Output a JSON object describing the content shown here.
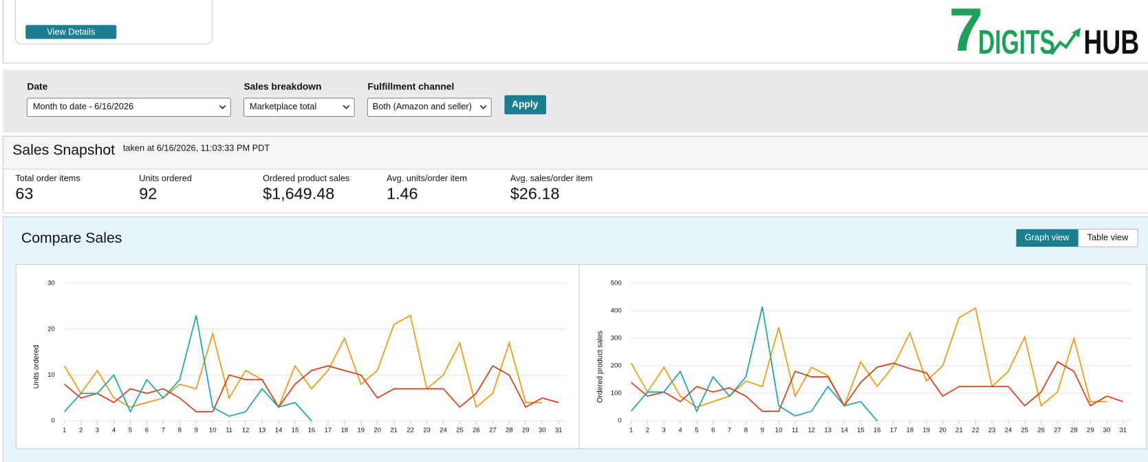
{
  "header": {
    "button": "View Details",
    "logo": {
      "number": "7",
      "word1": "DIGITS",
      "word2": "HUB"
    }
  },
  "filters": {
    "date": {
      "label": "Date",
      "value": "Month to date - 6/16/2026"
    },
    "breakdown": {
      "label": "Sales breakdown",
      "value": "Marketplace total"
    },
    "channel": {
      "label": "Fulfillment channel",
      "value": "Both (Amazon and seller)"
    },
    "apply": "Apply"
  },
  "snapshot": {
    "title": "Sales Snapshot",
    "timestamp": "taken at 6/16/2026, 11:03:33 PM PDT",
    "metrics": [
      {
        "label": "Total order items",
        "value": "63"
      },
      {
        "label": "Units ordered",
        "value": "92"
      },
      {
        "label": "Ordered product sales",
        "value": "$1,649.48"
      },
      {
        "label": "Avg. units/order item",
        "value": "1.46"
      },
      {
        "label": "Avg. sales/order item",
        "value": "$26.18"
      }
    ]
  },
  "compare": {
    "title": "Compare Sales",
    "views": [
      "Graph view",
      "Table view"
    ]
  },
  "chart_data": [
    {
      "type": "line",
      "ylabel": "Units ordered",
      "x": [
        1,
        2,
        3,
        4,
        5,
        6,
        7,
        8,
        9,
        10,
        11,
        12,
        13,
        14,
        15,
        16,
        17,
        18,
        19,
        20,
        21,
        22,
        23,
        24,
        25,
        26,
        27,
        28,
        29,
        30,
        31
      ],
      "xlim": [
        1,
        31
      ],
      "xticks": [
        1,
        2,
        3,
        4,
        5,
        6,
        7,
        8,
        9,
        10,
        11,
        12,
        13,
        14,
        15,
        16,
        17,
        18,
        19,
        20,
        21,
        22,
        23,
        24,
        25,
        26,
        27,
        28,
        29,
        30,
        31
      ],
      "ylim": [
        0,
        30
      ],
      "yticks": [
        0,
        10,
        20,
        30
      ],
      "grid": true,
      "series": [
        {
          "color": "#f0960e",
          "values": [
            12,
            6,
            11,
            5,
            3,
            4,
            5,
            8,
            7,
            19,
            5,
            11,
            9,
            3,
            12,
            7,
            11,
            18,
            8,
            11,
            21,
            23,
            7,
            10,
            17,
            3,
            6,
            17,
            4,
            4,
            null
          ]
        },
        {
          "color": "#d93b10",
          "values": [
            8,
            5,
            6,
            4,
            7,
            6,
            7,
            5,
            2,
            2,
            10,
            9,
            9,
            3,
            8,
            11,
            12,
            11,
            10,
            5,
            7,
            7,
            7,
            7,
            3,
            6,
            12,
            10,
            3,
            5,
            4
          ]
        },
        {
          "color": "#17a2ad",
          "values": [
            2,
            6,
            6,
            10,
            2,
            9,
            5,
            9,
            23,
            3,
            1,
            2,
            7,
            3,
            4,
            0,
            null,
            null,
            null,
            null,
            null,
            null,
            null,
            null,
            null,
            null,
            null,
            null,
            null,
            null,
            null
          ]
        }
      ]
    },
    {
      "type": "line",
      "ylabel": "Ordered product sales",
      "x": [
        1,
        2,
        3,
        4,
        5,
        6,
        7,
        8,
        9,
        10,
        11,
        12,
        13,
        14,
        15,
        16,
        17,
        18,
        19,
        20,
        21,
        22,
        23,
        24,
        25,
        26,
        27,
        28,
        29,
        30,
        31
      ],
      "xlim": [
        1,
        31
      ],
      "xticks": [
        1,
        2,
        3,
        4,
        5,
        6,
        7,
        8,
        9,
        10,
        11,
        12,
        13,
        14,
        15,
        16,
        17,
        18,
        19,
        20,
        21,
        22,
        23,
        24,
        25,
        26,
        27,
        28,
        29,
        30,
        31
      ],
      "ylim": [
        0,
        500
      ],
      "yticks": [
        0,
        100,
        200,
        300,
        400,
        500
      ],
      "grid": true,
      "series": [
        {
          "color": "#f0960e",
          "values": [
            210,
            105,
            195,
            90,
            50,
            70,
            90,
            145,
            125,
            340,
            90,
            195,
            165,
            55,
            215,
            125,
            200,
            320,
            145,
            200,
            375,
            410,
            125,
            180,
            305,
            55,
            105,
            300,
            70,
            70,
            null
          ]
        },
        {
          "color": "#d93b10",
          "values": [
            140,
            90,
            105,
            70,
            125,
            105,
            120,
            90,
            35,
            35,
            180,
            160,
            160,
            55,
            140,
            195,
            210,
            190,
            175,
            90,
            125,
            125,
            125,
            125,
            55,
            105,
            215,
            180,
            55,
            90,
            70
          ]
        },
        {
          "color": "#17a2ad",
          "values": [
            35,
            105,
            105,
            180,
            35,
            160,
            90,
            160,
            415,
            55,
            18,
            35,
            125,
            55,
            70,
            0,
            null,
            null,
            null,
            null,
            null,
            null,
            null,
            null,
            null,
            null,
            null,
            null,
            null,
            null,
            null
          ]
        }
      ]
    }
  ]
}
